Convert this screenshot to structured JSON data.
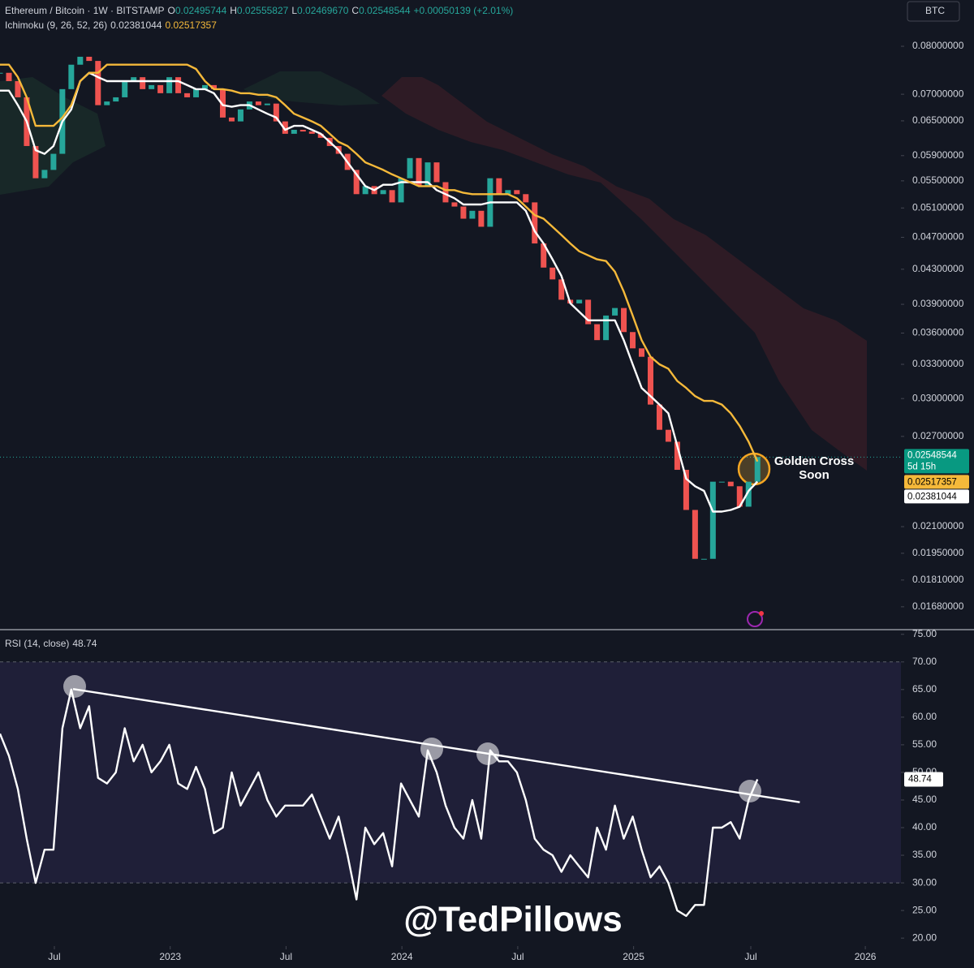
{
  "chart_data": [
    {
      "type": "candlestick",
      "header": {
        "title": "Ethereum / Bitcoin · 1W · BITSTAMP",
        "ohlc": [
          {
            "key": "O",
            "value": "0.02495744"
          },
          {
            "key": "H",
            "value": "0.02555827"
          },
          {
            "key": "L",
            "value": "0.02469670"
          },
          {
            "key": "C",
            "value": "0.02548544"
          }
        ],
        "change": "+0.00050139 (+2.01%)"
      },
      "indicator": "Ichimoku (9, 26, 52, 26)",
      "symbol": "BTC",
      "countdown": "5d 15h",
      "annotation": [
        "Golden Cross",
        "Soon"
      ],
      "x": [
        0,
        2,
        4,
        6,
        8,
        10,
        12,
        14,
        16,
        18,
        20,
        22,
        24,
        26,
        28,
        30,
        32,
        34,
        36,
        38,
        40,
        42,
        44,
        46,
        48,
        50,
        52,
        54,
        56,
        58,
        60,
        62,
        64,
        66,
        68,
        70,
        72,
        74,
        76,
        78,
        80,
        82,
        84,
        86,
        88,
        90,
        92,
        94,
        96,
        98,
        100,
        102,
        104,
        106,
        108,
        110,
        112,
        114,
        116,
        118,
        120,
        122,
        124,
        126,
        128,
        130,
        132,
        134,
        136,
        138,
        140,
        142,
        144,
        146,
        148,
        150,
        152,
        154,
        156,
        158,
        160,
        162,
        164,
        166,
        168,
        170
      ],
      "series": [
        {
          "style": "candles",
          "color": "#26a69a",
          "down_color": "#ef5350",
          "values": [
            0.0743,
            0.0726,
            0.0694,
            0.0606,
            0.0554,
            0.0567,
            0.0593,
            0.071,
            0.076,
            0.0777,
            0.0768,
            0.0679,
            0.0686,
            0.0694,
            0.0726,
            0.0734,
            0.071,
            0.0718,
            0.0702,
            0.0734,
            0.0702,
            0.0694,
            0.071,
            0.0718,
            0.071,
            0.0656,
            0.0649,
            0.0671,
            0.0686,
            0.0679,
            0.0682,
            0.0649,
            0.0627,
            0.0634,
            0.0631,
            0.0627,
            0.062,
            0.0606,
            0.0593,
            0.0567,
            0.053,
            0.0542,
            0.053,
            0.0536,
            0.0518,
            0.0554,
            0.0586,
            0.0542,
            0.0579,
            0.0548,
            0.0518,
            0.0512,
            0.0495,
            0.0506,
            0.0484,
            0.0554,
            0.053,
            0.0536,
            0.053,
            0.0518,
            0.0462,
            0.0432,
            0.0418,
            0.0395,
            0.0391,
            0.0395,
            0.0369,
            0.0353,
            0.0378,
            0.0386,
            0.0361,
            0.0345,
            0.0337,
            0.0295,
            0.0275,
            0.0266,
            0.0246,
            0.022,
            0.0192,
            0.0192,
            0.0238,
            0.0238,
            0.0235,
            0.0222,
            0.0238,
            0.02548544
          ]
        },
        {
          "style": "line",
          "color": "#ffffff",
          "values": [
            0.0707,
            0.0707,
            0.0679,
            0.0649,
            0.0599,
            0.0593,
            0.0606,
            0.0649,
            0.0671,
            0.0726,
            0.0743,
            0.0734,
            0.0726,
            0.0726,
            0.0726,
            0.0726,
            0.0726,
            0.0726,
            0.0726,
            0.0726,
            0.0726,
            0.0718,
            0.071,
            0.071,
            0.0702,
            0.0679,
            0.0676,
            0.0679,
            0.0679,
            0.0671,
            0.0663,
            0.0656,
            0.0634,
            0.0641,
            0.0641,
            0.0634,
            0.0627,
            0.0613,
            0.0599,
            0.0579,
            0.056,
            0.0542,
            0.0536,
            0.0544,
            0.0544,
            0.0548,
            0.0548,
            0.0548,
            0.0548,
            0.0536,
            0.053,
            0.0524,
            0.0515,
            0.0515,
            0.0515,
            0.0518,
            0.0518,
            0.0518,
            0.0518,
            0.0506,
            0.0478,
            0.0462,
            0.0442,
            0.0422,
            0.0391,
            0.0382,
            0.0373,
            0.0373,
            0.0373,
            0.0373,
            0.0353,
            0.033,
            0.0309,
            0.0302,
            0.0295,
            0.0288,
            0.0263,
            0.024,
            0.0235,
            0.0232,
            0.0219,
            0.0219,
            0.022,
            0.0222,
            0.0232,
            0.02381044
          ]
        },
        {
          "style": "line",
          "color": "#f5b93a",
          "values": [
            0.076,
            0.076,
            0.0734,
            0.0694,
            0.0641,
            0.0641,
            0.0641,
            0.0656,
            0.0679,
            0.0726,
            0.0743,
            0.0743,
            0.076,
            0.076,
            0.076,
            0.076,
            0.076,
            0.076,
            0.076,
            0.076,
            0.076,
            0.076,
            0.0751,
            0.0726,
            0.071,
            0.071,
            0.0707,
            0.0702,
            0.0702,
            0.0699,
            0.0699,
            0.0694,
            0.0679,
            0.0663,
            0.0656,
            0.0649,
            0.0641,
            0.0627,
            0.0613,
            0.0606,
            0.0593,
            0.0579,
            0.0573,
            0.0567,
            0.056,
            0.0554,
            0.0548,
            0.0542,
            0.0542,
            0.0542,
            0.0536,
            0.0536,
            0.0532,
            0.053,
            0.053,
            0.053,
            0.053,
            0.053,
            0.0524,
            0.0512,
            0.05,
            0.0495,
            0.0484,
            0.0473,
            0.0462,
            0.0452,
            0.0447,
            0.0442,
            0.044,
            0.0427,
            0.0404,
            0.0378,
            0.0353,
            0.0337,
            0.033,
            0.0326,
            0.0315,
            0.0309,
            0.0302,
            0.0298,
            0.0298,
            0.0295,
            0.0288,
            0.0278,
            0.0266,
            0.02517357
          ]
        }
      ],
      "xlim": [
        0,
        202.2
      ],
      "ylim": [
        0.0158,
        0.091
      ],
      "log_scale": true,
      "yticks": [
        {
          "value": 0.08,
          "label": "0.08000000"
        },
        {
          "value": 0.07,
          "label": "0.07000000"
        },
        {
          "value": 0.065,
          "label": "0.06500000"
        },
        {
          "value": 0.059,
          "label": "0.05900000"
        },
        {
          "value": 0.055,
          "label": "0.05500000"
        },
        {
          "value": 0.051,
          "label": "0.05100000"
        },
        {
          "value": 0.047,
          "label": "0.04700000"
        },
        {
          "value": 0.043,
          "label": "0.04300000"
        },
        {
          "value": 0.039,
          "label": "0.03900000"
        },
        {
          "value": 0.036,
          "label": "0.03600000"
        },
        {
          "value": 0.033,
          "label": "0.03300000"
        },
        {
          "value": 0.03,
          "label": "0.03000000"
        },
        {
          "value": 0.027,
          "label": "0.02700000"
        },
        {
          "value": 0.021,
          "label": "0.02100000"
        },
        {
          "value": 0.0195,
          "label": "0.01950000"
        },
        {
          "value": 0.0181,
          "label": "0.01810000"
        },
        {
          "value": 0.0168,
          "label": "0.01680000"
        }
      ]
    },
    {
      "type": "line",
      "title": "RSI (14, close)",
      "watermark": "@TedPillows",
      "x": [
        0,
        2,
        4,
        6,
        8,
        10,
        12,
        14,
        16,
        18,
        20,
        22,
        24,
        26,
        28,
        30,
        32,
        34,
        36,
        38,
        40,
        42,
        44,
        46,
        48,
        50,
        52,
        54,
        56,
        58,
        60,
        62,
        64,
        66,
        68,
        70,
        72,
        74,
        76,
        78,
        80,
        82,
        84,
        86,
        88,
        90,
        92,
        94,
        96,
        98,
        100,
        102,
        104,
        106,
        108,
        110,
        112,
        114,
        116,
        118,
        120,
        122,
        124,
        126,
        128,
        130,
        132,
        134,
        136,
        138,
        140,
        142,
        144,
        146,
        148,
        150,
        152,
        154,
        156,
        158,
        160,
        162,
        164,
        166,
        168,
        170
      ],
      "series": [
        {
          "color": "#ffffff",
          "values": [
            57,
            53,
            47,
            38,
            30,
            36,
            36,
            58,
            65,
            58,
            62,
            49,
            48,
            50,
            58,
            52,
            55,
            50,
            52,
            55,
            48,
            47,
            51,
            47,
            39,
            40,
            50,
            44,
            47,
            50,
            45,
            42,
            44,
            44,
            44,
            46,
            42,
            38,
            42,
            35,
            27,
            40,
            37,
            39,
            33,
            48,
            45,
            42,
            54,
            50,
            44,
            40,
            38,
            45,
            38,
            54,
            52,
            52,
            50,
            45,
            38,
            36,
            35,
            32,
            35,
            33,
            31,
            40,
            36,
            44,
            38,
            42,
            36,
            31,
            33,
            30,
            25,
            24,
            26,
            26,
            40,
            40,
            41,
            38,
            45,
            48.74
          ]
        }
      ],
      "trendline": {
        "x": [
          16.4,
          179.5
        ],
        "values": [
          65.1,
          44.6
        ],
        "color": "#ffffff"
      },
      "band": [
        30,
        70
      ],
      "band_color": "#1f1f38",
      "xlim": [
        0,
        202.2
      ],
      "ylim": [
        18.7,
        75.7
      ],
      "xticks": [
        {
          "value": 12.2,
          "label": "Jul"
        },
        {
          "value": 38.2,
          "label": "2023"
        },
        {
          "value": 64.2,
          "label": "Jul"
        },
        {
          "value": 90.2,
          "label": "2024"
        },
        {
          "value": 116.2,
          "label": "Jul"
        },
        {
          "value": 142.2,
          "label": "2025"
        },
        {
          "value": 168.5,
          "label": "Jul"
        },
        {
          "value": 194.2,
          "label": "2026"
        }
      ],
      "yticks": [
        {
          "value": 20,
          "label": "20.00"
        },
        {
          "value": 25,
          "label": "25.00"
        },
        {
          "value": 30,
          "label": "30.00"
        },
        {
          "value": 35,
          "label": "35.00"
        },
        {
          "value": 40,
          "label": "40.00"
        },
        {
          "value": 45,
          "label": "45.00"
        },
        {
          "value": 50,
          "label": "50.00"
        },
        {
          "value": 55,
          "label": "55.00"
        },
        {
          "value": 60,
          "label": "60.00"
        },
        {
          "value": 65,
          "label": "65.00"
        },
        {
          "value": 70,
          "label": "70.00"
        },
        {
          "value": 75,
          "label": "75.00"
        }
      ]
    }
  ]
}
